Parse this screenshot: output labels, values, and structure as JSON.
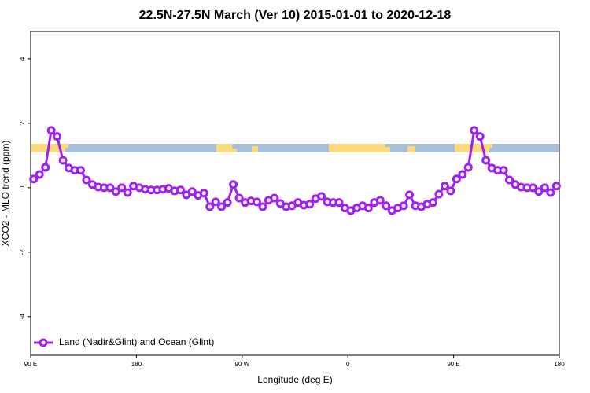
{
  "chart_data": {
    "type": "line",
    "title": "22.5N-27.5N March (Ver 10)   2015-01-01 to 2020-12-18",
    "x_label": "Longitude (deg E)",
    "y_label": "XCO2 - MLO trend (ppm)",
    "x": [
      92.5,
      97.5,
      102.5,
      107.5,
      112.5,
      117.5,
      122.5,
      127.5,
      132.5,
      137.5,
      142.5,
      147.5,
      152.5,
      157.5,
      162.5,
      167.5,
      172.5,
      177.5,
      182.5,
      187.5,
      192.5,
      197.5,
      202.5,
      207.5,
      212.5,
      217.5,
      222.5,
      227.5,
      232.5,
      237.5,
      242.5,
      247.5,
      252.5,
      257.5,
      262.5,
      267.5,
      272.5,
      277.5,
      282.5,
      287.5,
      292.5,
      297.5,
      302.5,
      307.5,
      312.5,
      317.5,
      322.5,
      327.5,
      332.5,
      337.5,
      342.5,
      347.5,
      352.5,
      357.5,
      362.5,
      367.5,
      372.5,
      377.5,
      382.5,
      387.5,
      392.5,
      397.5,
      402.5,
      407.5,
      412.5,
      417.5,
      422.5,
      427.5,
      432.5,
      437.5,
      442.5,
      447.5,
      452.5,
      457.5,
      462.5,
      467.5,
      472.5,
      477.5,
      482.5,
      487.5,
      492.5,
      497.5,
      502.5,
      507.5,
      512.5,
      517.5,
      522.5,
      527.5,
      532.5,
      537.5
    ],
    "series": [
      {
        "name": "Land (Nadir&Glint) and Ocean (Glint)",
        "color": "#a020f0",
        "values": [
          0.27,
          0.41,
          0.63,
          1.78,
          1.59,
          0.85,
          0.61,
          0.54,
          0.54,
          0.24,
          0.1,
          0.02,
          0.0,
          0.0,
          -0.12,
          0.0,
          -0.15,
          0.05,
          0.0,
          -0.05,
          -0.07,
          -0.07,
          -0.05,
          -0.02,
          -0.1,
          -0.07,
          -0.22,
          -0.12,
          -0.24,
          -0.17,
          -0.59,
          -0.44,
          -0.59,
          -0.46,
          0.1,
          -0.32,
          -0.46,
          -0.41,
          -0.44,
          -0.59,
          -0.39,
          -0.32,
          -0.49,
          -0.59,
          -0.56,
          -0.46,
          -0.54,
          -0.51,
          -0.34,
          -0.27,
          -0.44,
          -0.46,
          -0.46,
          -0.63,
          -0.71,
          -0.63,
          -0.56,
          -0.63,
          -0.46,
          -0.39,
          -0.56,
          -0.71,
          -0.63,
          -0.56,
          -0.22,
          -0.56,
          -0.59,
          -0.51,
          -0.46,
          -0.2,
          0.05,
          -0.1,
          0.27,
          0.41,
          0.63,
          1.78,
          1.59,
          0.85,
          0.61,
          0.54,
          0.54,
          0.24,
          0.1,
          0.02,
          0.0,
          0.0,
          -0.12,
          0.0,
          -0.15,
          0.05
        ]
      }
    ],
    "xlim": [
      90,
      540
    ],
    "xticks": [
      {
        "value": 90,
        "label": "90 E"
      },
      180,
      {
        "value": 270,
        "label": "90 W"
      },
      {
        "value": 360,
        "label": "0"
      },
      {
        "value": 450,
        "label": "90 E"
      },
      {
        "value": 540,
        "label": "180"
      }
    ],
    "ylim": [
      -5.2,
      4.85
    ],
    "yticks": [
      -4,
      -2,
      0,
      2,
      4
    ],
    "legend": "bottom-left"
  }
}
